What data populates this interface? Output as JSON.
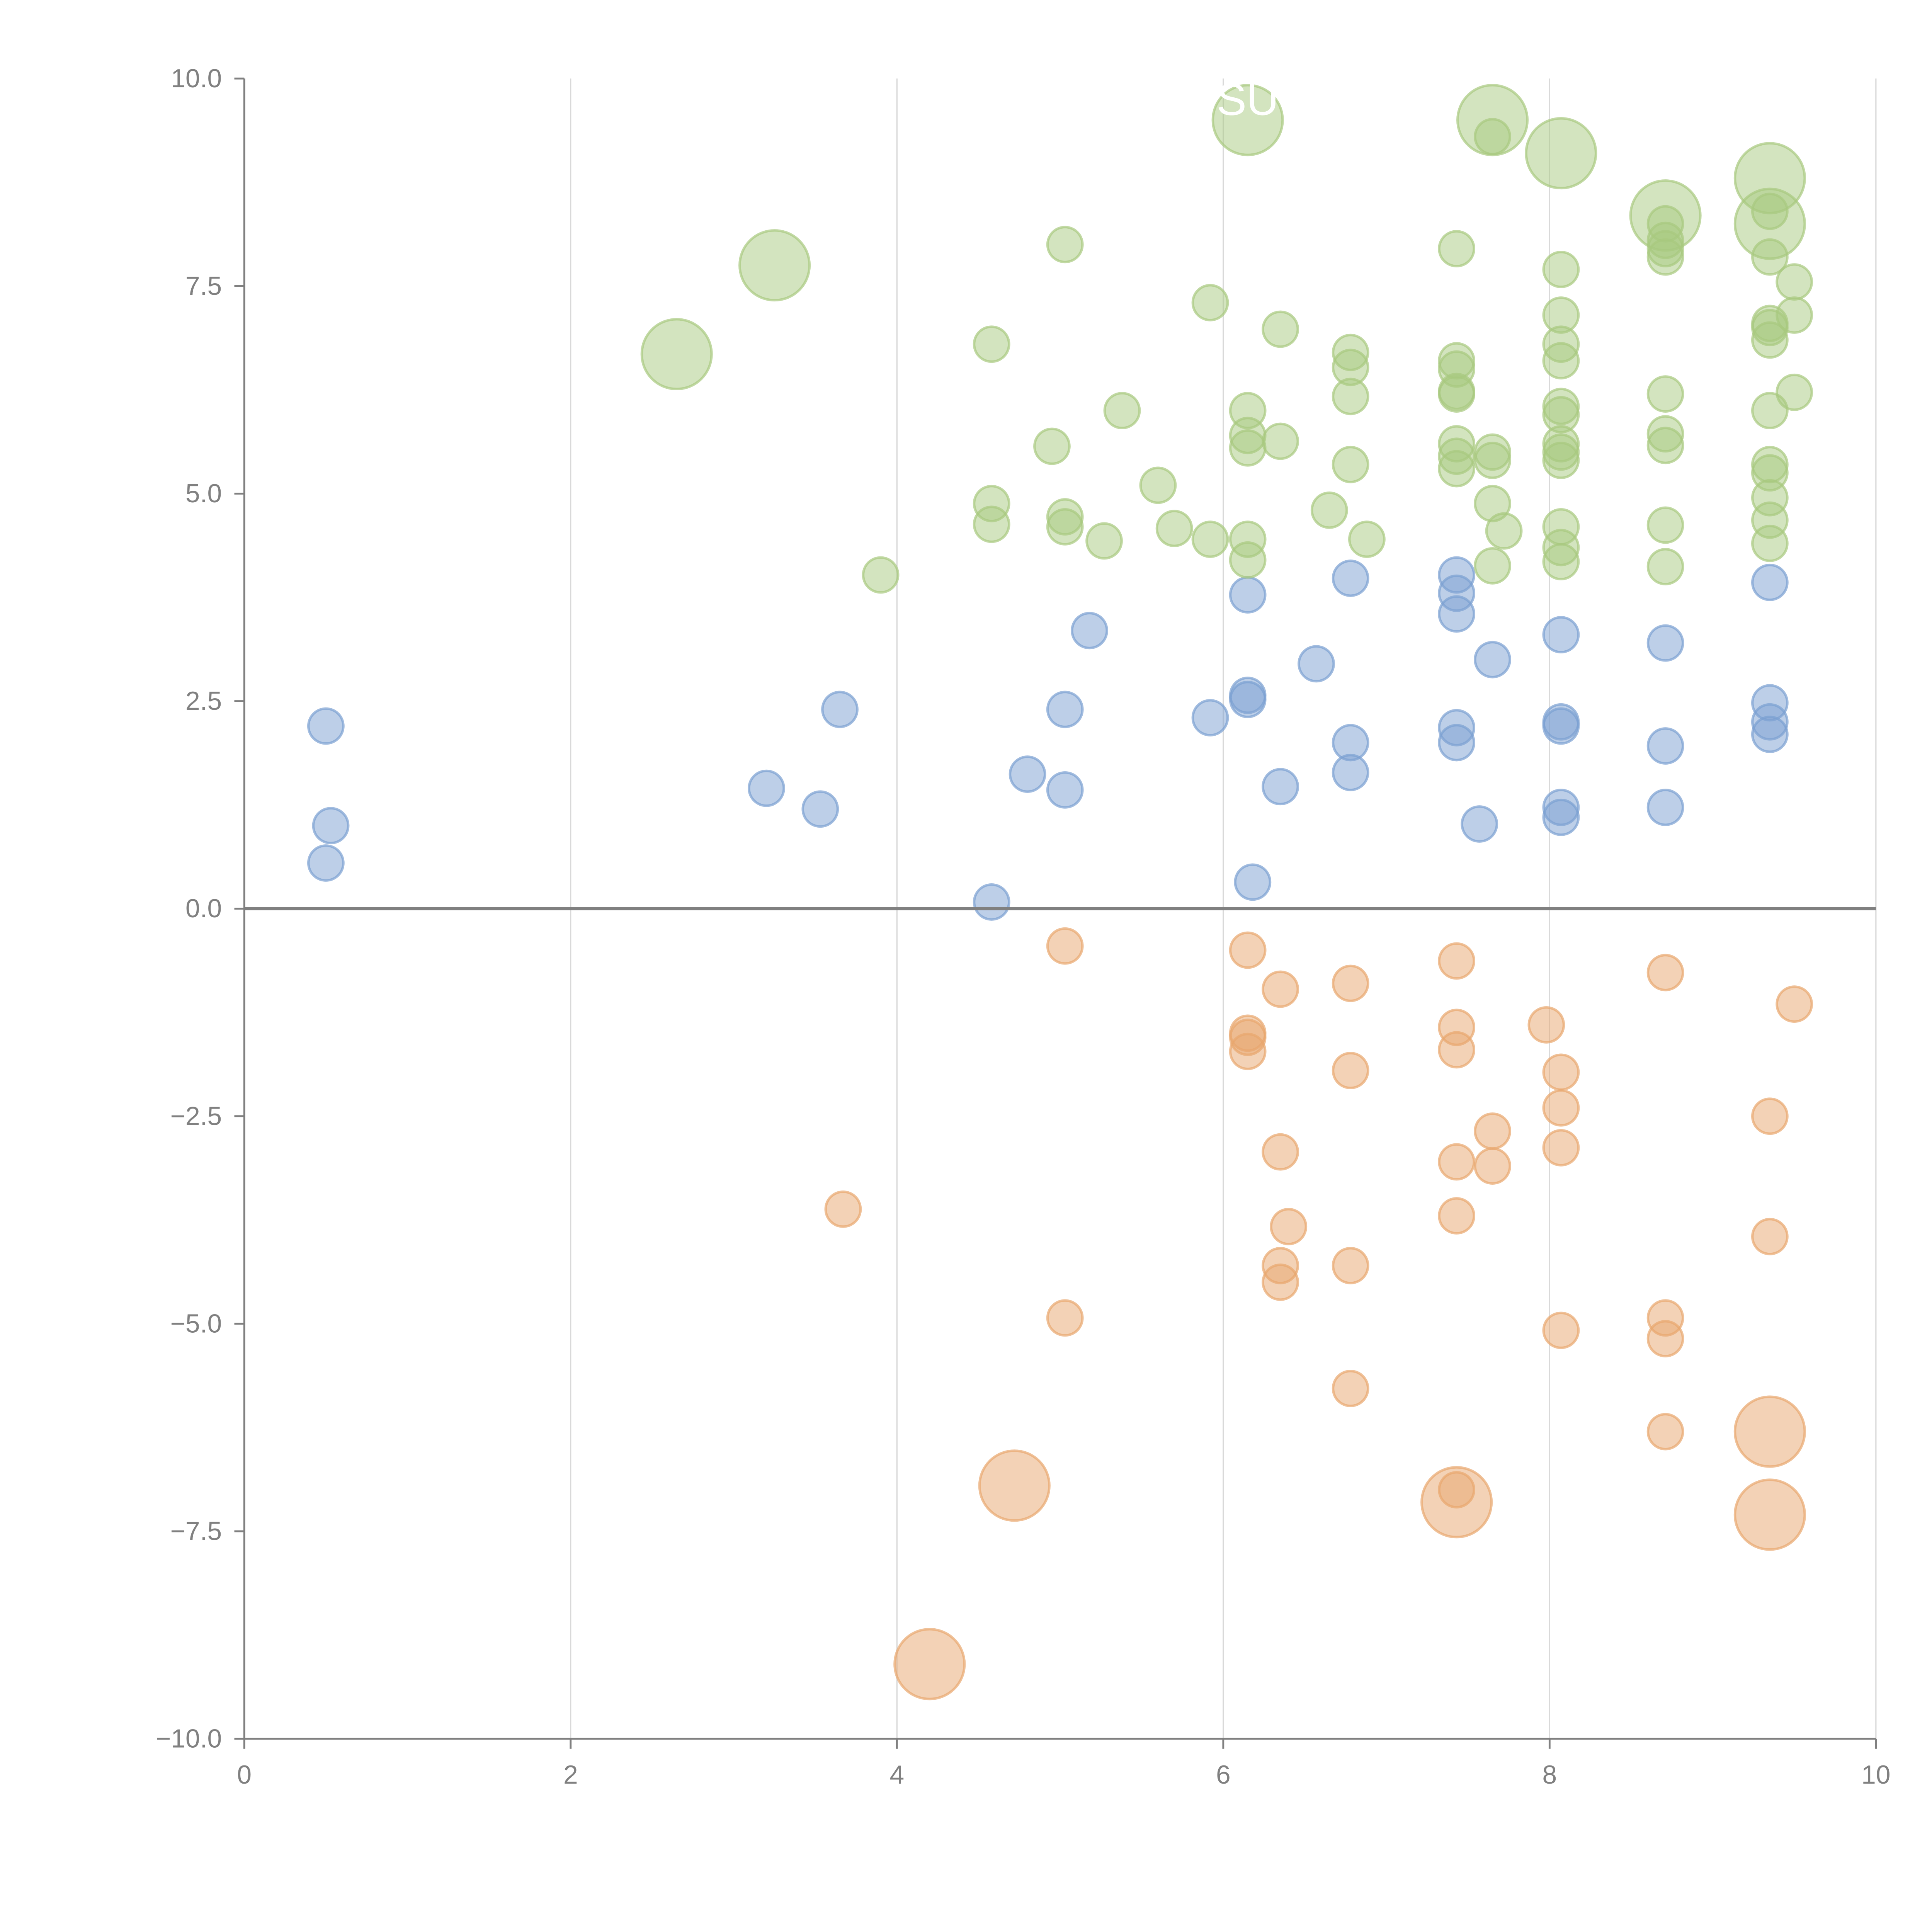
{
  "chart_data": {
    "type": "scatter",
    "subtype": "bubble",
    "title": "",
    "xlabel": "",
    "ylabel": "",
    "xlim": [
      0,
      10
    ],
    "ylim": [
      -10,
      10
    ],
    "grid": "vertical",
    "legend": "none",
    "x_ticks": [
      "0",
      "2",
      "4",
      "6",
      "8",
      "10"
    ],
    "x_tick_values": [
      0,
      2,
      4,
      6,
      8,
      10
    ],
    "y_ticks": [
      "10.0",
      "7.5",
      "5.0",
      "2.5",
      "0.0",
      "−2.5",
      "−5.0",
      "−7.5",
      "−10.0"
    ],
    "y_tick_values": [
      10,
      7.5,
      5,
      2.5,
      0,
      -2.5,
      -5,
      -7.5,
      -10
    ],
    "annotations": [
      {
        "text": "SU",
        "x": 6.15,
        "y": 9.5,
        "color": "#ffffff"
      }
    ],
    "series": [
      {
        "name": "blue",
        "color": "#7b9fd1",
        "points": [
          {
            "x": 0.5,
            "y": 2.2,
            "size": 1
          },
          {
            "x": 0.53,
            "y": 1.0,
            "size": 1
          },
          {
            "x": 0.5,
            "y": 0.55,
            "size": 1
          },
          {
            "x": 3.2,
            "y": 1.45,
            "size": 1
          },
          {
            "x": 3.53,
            "y": 1.2,
            "size": 1
          },
          {
            "x": 3.65,
            "y": 2.4,
            "size": 1
          },
          {
            "x": 4.58,
            "y": 0.08,
            "size": 1
          },
          {
            "x": 4.8,
            "y": 1.62,
            "size": 1
          },
          {
            "x": 5.03,
            "y": 2.4,
            "size": 1
          },
          {
            "x": 5.03,
            "y": 1.43,
            "size": 1
          },
          {
            "x": 5.18,
            "y": 3.35,
            "size": 1
          },
          {
            "x": 5.92,
            "y": 2.3,
            "size": 1
          },
          {
            "x": 6.15,
            "y": 3.78,
            "size": 1
          },
          {
            "x": 6.15,
            "y": 2.57,
            "size": 1
          },
          {
            "x": 6.15,
            "y": 2.52,
            "size": 1
          },
          {
            "x": 6.18,
            "y": 0.32,
            "size": 1
          },
          {
            "x": 6.35,
            "y": 1.47,
            "size": 1
          },
          {
            "x": 6.57,
            "y": 2.95,
            "size": 1
          },
          {
            "x": 6.78,
            "y": 3.98,
            "size": 1
          },
          {
            "x": 6.78,
            "y": 2.0,
            "size": 1
          },
          {
            "x": 6.78,
            "y": 1.64,
            "size": 1
          },
          {
            "x": 7.43,
            "y": 4.02,
            "size": 1
          },
          {
            "x": 7.43,
            "y": 3.8,
            "size": 1
          },
          {
            "x": 7.43,
            "y": 3.55,
            "size": 1
          },
          {
            "x": 7.43,
            "y": 2.18,
            "size": 1
          },
          {
            "x": 7.43,
            "y": 2.0,
            "size": 1
          },
          {
            "x": 7.57,
            "y": 1.02,
            "size": 1
          },
          {
            "x": 7.65,
            "y": 3.0,
            "size": 1
          },
          {
            "x": 8.07,
            "y": 3.3,
            "size": 1
          },
          {
            "x": 8.07,
            "y": 2.25,
            "size": 1
          },
          {
            "x": 8.07,
            "y": 2.2,
            "size": 1
          },
          {
            "x": 8.07,
            "y": 1.22,
            "size": 1
          },
          {
            "x": 8.07,
            "y": 1.1,
            "size": 1
          },
          {
            "x": 8.71,
            "y": 3.2,
            "size": 1
          },
          {
            "x": 8.71,
            "y": 1.96,
            "size": 1
          },
          {
            "x": 8.71,
            "y": 1.22,
            "size": 1
          },
          {
            "x": 9.35,
            "y": 3.93,
            "size": 1
          },
          {
            "x": 9.35,
            "y": 2.48,
            "size": 1
          },
          {
            "x": 9.35,
            "y": 2.25,
            "size": 1
          },
          {
            "x": 9.35,
            "y": 2.1,
            "size": 1
          }
        ]
      },
      {
        "name": "green",
        "color": "#a8c97f",
        "points": [
          {
            "x": 2.65,
            "y": 6.68,
            "size": 2
          },
          {
            "x": 3.25,
            "y": 7.75,
            "size": 2
          },
          {
            "x": 3.9,
            "y": 4.02,
            "size": 1
          },
          {
            "x": 4.58,
            "y": 6.8,
            "size": 1
          },
          {
            "x": 4.58,
            "y": 4.88,
            "size": 1
          },
          {
            "x": 4.58,
            "y": 4.63,
            "size": 1
          },
          {
            "x": 4.95,
            "y": 5.57,
            "size": 1
          },
          {
            "x": 5.03,
            "y": 8.0,
            "size": 1
          },
          {
            "x": 5.03,
            "y": 4.72,
            "size": 1
          },
          {
            "x": 5.03,
            "y": 4.6,
            "size": 1
          },
          {
            "x": 5.27,
            "y": 4.43,
            "size": 1
          },
          {
            "x": 5.38,
            "y": 6.0,
            "size": 1
          },
          {
            "x": 5.6,
            "y": 5.1,
            "size": 1
          },
          {
            "x": 5.7,
            "y": 4.58,
            "size": 1
          },
          {
            "x": 5.92,
            "y": 7.3,
            "size": 1
          },
          {
            "x": 5.92,
            "y": 4.45,
            "size": 1
          },
          {
            "x": 6.15,
            "y": 9.5,
            "size": 2
          },
          {
            "x": 6.15,
            "y": 6.0,
            "size": 1
          },
          {
            "x": 6.15,
            "y": 5.7,
            "size": 1
          },
          {
            "x": 6.15,
            "y": 5.55,
            "size": 1
          },
          {
            "x": 6.15,
            "y": 4.45,
            "size": 1
          },
          {
            "x": 6.15,
            "y": 4.2,
            "size": 1
          },
          {
            "x": 6.35,
            "y": 6.98,
            "size": 1
          },
          {
            "x": 6.35,
            "y": 5.63,
            "size": 1
          },
          {
            "x": 6.65,
            "y": 4.8,
            "size": 1
          },
          {
            "x": 6.78,
            "y": 6.7,
            "size": 1
          },
          {
            "x": 6.78,
            "y": 6.52,
            "size": 1
          },
          {
            "x": 6.78,
            "y": 6.17,
            "size": 1
          },
          {
            "x": 6.78,
            "y": 5.35,
            "size": 1
          },
          {
            "x": 6.88,
            "y": 4.45,
            "size": 1
          },
          {
            "x": 7.43,
            "y": 7.95,
            "size": 1
          },
          {
            "x": 7.43,
            "y": 6.6,
            "size": 1
          },
          {
            "x": 7.43,
            "y": 6.5,
            "size": 1
          },
          {
            "x": 7.43,
            "y": 6.23,
            "size": 1
          },
          {
            "x": 7.43,
            "y": 6.2,
            "size": 1
          },
          {
            "x": 7.43,
            "y": 5.6,
            "size": 1
          },
          {
            "x": 7.43,
            "y": 5.45,
            "size": 1
          },
          {
            "x": 7.43,
            "y": 5.3,
            "size": 1
          },
          {
            "x": 7.65,
            "y": 9.5,
            "size": 2
          },
          {
            "x": 7.65,
            "y": 9.3,
            "size": 1
          },
          {
            "x": 7.65,
            "y": 5.5,
            "size": 1
          },
          {
            "x": 7.65,
            "y": 5.4,
            "size": 1
          },
          {
            "x": 7.65,
            "y": 4.88,
            "size": 1
          },
          {
            "x": 7.65,
            "y": 4.13,
            "size": 1
          },
          {
            "x": 7.72,
            "y": 4.55,
            "size": 1
          },
          {
            "x": 8.07,
            "y": 9.1,
            "size": 2
          },
          {
            "x": 8.07,
            "y": 7.7,
            "size": 1
          },
          {
            "x": 8.07,
            "y": 7.15,
            "size": 1
          },
          {
            "x": 8.07,
            "y": 6.8,
            "size": 1
          },
          {
            "x": 8.07,
            "y": 6.6,
            "size": 1
          },
          {
            "x": 8.07,
            "y": 6.05,
            "size": 1
          },
          {
            "x": 8.07,
            "y": 5.95,
            "size": 1
          },
          {
            "x": 8.07,
            "y": 5.6,
            "size": 1
          },
          {
            "x": 8.07,
            "y": 5.5,
            "size": 1
          },
          {
            "x": 8.07,
            "y": 5.4,
            "size": 1
          },
          {
            "x": 8.07,
            "y": 4.6,
            "size": 1
          },
          {
            "x": 8.07,
            "y": 4.35,
            "size": 1
          },
          {
            "x": 8.07,
            "y": 4.18,
            "size": 1
          },
          {
            "x": 8.71,
            "y": 8.35,
            "size": 2
          },
          {
            "x": 8.71,
            "y": 8.25,
            "size": 1
          },
          {
            "x": 8.71,
            "y": 8.05,
            "size": 1
          },
          {
            "x": 8.71,
            "y": 7.95,
            "size": 1
          },
          {
            "x": 8.71,
            "y": 7.85,
            "size": 1
          },
          {
            "x": 8.71,
            "y": 6.2,
            "size": 1
          },
          {
            "x": 8.71,
            "y": 5.72,
            "size": 1
          },
          {
            "x": 8.71,
            "y": 5.58,
            "size": 1
          },
          {
            "x": 8.71,
            "y": 4.62,
            "size": 1
          },
          {
            "x": 8.71,
            "y": 4.12,
            "size": 1
          },
          {
            "x": 9.35,
            "y": 8.8,
            "size": 2
          },
          {
            "x": 9.35,
            "y": 8.4,
            "size": 1
          },
          {
            "x": 9.35,
            "y": 8.25,
            "size": 2
          },
          {
            "x": 9.35,
            "y": 7.85,
            "size": 1
          },
          {
            "x": 9.5,
            "y": 7.55,
            "size": 1
          },
          {
            "x": 9.5,
            "y": 7.15,
            "size": 1
          },
          {
            "x": 9.35,
            "y": 7.05,
            "size": 1
          },
          {
            "x": 9.35,
            "y": 7.0,
            "size": 1
          },
          {
            "x": 9.35,
            "y": 6.85,
            "size": 1
          },
          {
            "x": 9.5,
            "y": 6.22,
            "size": 1
          },
          {
            "x": 9.35,
            "y": 6.0,
            "size": 1
          },
          {
            "x": 9.35,
            "y": 5.35,
            "size": 1
          },
          {
            "x": 9.35,
            "y": 5.25,
            "size": 1
          },
          {
            "x": 9.35,
            "y": 4.95,
            "size": 1
          },
          {
            "x": 9.35,
            "y": 4.68,
            "size": 1
          },
          {
            "x": 9.35,
            "y": 4.4,
            "size": 1
          }
        ]
      },
      {
        "name": "orange",
        "color": "#e8a66e",
        "points": [
          {
            "x": 3.67,
            "y": -3.62,
            "size": 1
          },
          {
            "x": 4.2,
            "y": -9.1,
            "size": 2
          },
          {
            "x": 4.72,
            "y": -6.95,
            "size": 2
          },
          {
            "x": 5.03,
            "y": -0.45,
            "size": 1
          },
          {
            "x": 5.03,
            "y": -4.93,
            "size": 1
          },
          {
            "x": 6.15,
            "y": -0.5,
            "size": 1
          },
          {
            "x": 6.15,
            "y": -1.5,
            "size": 1
          },
          {
            "x": 6.15,
            "y": -1.55,
            "size": 1
          },
          {
            "x": 6.15,
            "y": -1.72,
            "size": 1
          },
          {
            "x": 6.35,
            "y": -0.97,
            "size": 1
          },
          {
            "x": 6.35,
            "y": -2.93,
            "size": 1
          },
          {
            "x": 6.4,
            "y": -3.83,
            "size": 1
          },
          {
            "x": 6.35,
            "y": -4.3,
            "size": 1
          },
          {
            "x": 6.35,
            "y": -4.5,
            "size": 1
          },
          {
            "x": 6.78,
            "y": -0.9,
            "size": 1
          },
          {
            "x": 6.78,
            "y": -1.95,
            "size": 1
          },
          {
            "x": 6.78,
            "y": -4.3,
            "size": 1
          },
          {
            "x": 6.78,
            "y": -5.78,
            "size": 1
          },
          {
            "x": 7.43,
            "y": -0.63,
            "size": 1
          },
          {
            "x": 7.43,
            "y": -1.43,
            "size": 1
          },
          {
            "x": 7.43,
            "y": -1.7,
            "size": 1
          },
          {
            "x": 7.43,
            "y": -3.05,
            "size": 1
          },
          {
            "x": 7.43,
            "y": -3.7,
            "size": 1
          },
          {
            "x": 7.43,
            "y": -7.15,
            "size": 2
          },
          {
            "x": 7.43,
            "y": -7.0,
            "size": 1
          },
          {
            "x": 7.65,
            "y": -2.68,
            "size": 1
          },
          {
            "x": 7.65,
            "y": -3.1,
            "size": 1
          },
          {
            "x": 7.98,
            "y": -1.4,
            "size": 1
          },
          {
            "x": 8.07,
            "y": -1.97,
            "size": 1
          },
          {
            "x": 8.07,
            "y": -2.4,
            "size": 1
          },
          {
            "x": 8.07,
            "y": -2.88,
            "size": 1
          },
          {
            "x": 8.07,
            "y": -5.08,
            "size": 1
          },
          {
            "x": 8.71,
            "y": -0.77,
            "size": 1
          },
          {
            "x": 8.71,
            "y": -4.93,
            "size": 1
          },
          {
            "x": 8.71,
            "y": -5.18,
            "size": 1
          },
          {
            "x": 8.71,
            "y": -6.3,
            "size": 1
          },
          {
            "x": 9.35,
            "y": -2.5,
            "size": 1
          },
          {
            "x": 9.35,
            "y": -3.95,
            "size": 1
          },
          {
            "x": 9.35,
            "y": -6.3,
            "size": 2
          },
          {
            "x": 9.35,
            "y": -7.3,
            "size": 2
          },
          {
            "x": 9.5,
            "y": -1.15,
            "size": 1
          }
        ]
      }
    ]
  },
  "colors": {
    "axis": "#808080",
    "grid": "#d9d9d9",
    "zero_line": "#808080",
    "background": "#ffffff"
  }
}
